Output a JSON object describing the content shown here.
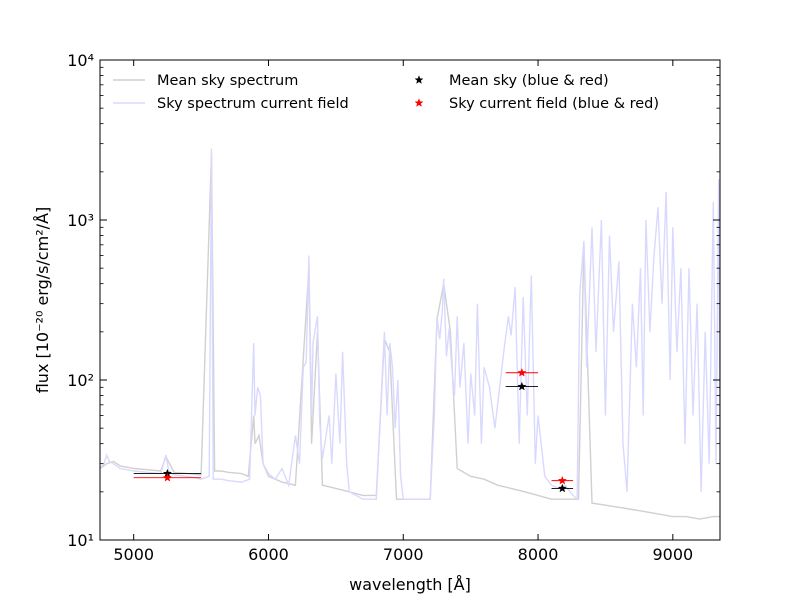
{
  "chart_data": {
    "type": "line",
    "xlabel": "wavelength [Å]",
    "ylabel": "flux [10⁻²⁰ erg/s/cm²/Å]",
    "xlim": [
      4750,
      9350
    ],
    "ylim": [
      10,
      10000
    ],
    "yscale": "log",
    "grid": false,
    "legend_position": "top",
    "x_ticks": [
      5000,
      6000,
      7000,
      8000,
      9000
    ],
    "y_ticks": [
      {
        "value": 10,
        "label": "10¹"
      },
      {
        "value": 100,
        "label": "10²"
      },
      {
        "value": 1000,
        "label": "10³"
      },
      {
        "value": 10000,
        "label": "10⁴"
      }
    ],
    "series": [
      {
        "name": "Mean sky spectrum",
        "kind": "line",
        "color": "#d0d0d0",
        "points": [
          [
            4750,
            28
          ],
          [
            4800,
            30
          ],
          [
            4850,
            31
          ],
          [
            4900,
            29
          ],
          [
            4950,
            28.5
          ],
          [
            5000,
            28
          ],
          [
            5100,
            27.5
          ],
          [
            5200,
            27
          ],
          [
            5240,
            33
          ],
          [
            5300,
            26.5
          ],
          [
            5400,
            26
          ],
          [
            5500,
            25.5
          ],
          [
            5577,
            2600
          ],
          [
            5600,
            27
          ],
          [
            5650,
            27
          ],
          [
            5700,
            26.5
          ],
          [
            5800,
            26
          ],
          [
            5850,
            25
          ],
          [
            5890,
            60
          ],
          [
            5900,
            40
          ],
          [
            5930,
            45
          ],
          [
            5960,
            30
          ],
          [
            6000,
            25
          ],
          [
            6100,
            23
          ],
          [
            6200,
            22
          ],
          [
            6300,
            500
          ],
          [
            6320,
            40
          ],
          [
            6364,
            200
          ],
          [
            6400,
            22
          ],
          [
            6500,
            21
          ],
          [
            6600,
            20
          ],
          [
            6700,
            19
          ],
          [
            6800,
            19
          ],
          [
            6860,
            180
          ],
          [
            6900,
            150
          ],
          [
            6950,
            18
          ],
          [
            7000,
            18
          ],
          [
            7100,
            18
          ],
          [
            7200,
            18
          ],
          [
            7250,
            240
          ],
          [
            7300,
            400
          ],
          [
            7350,
            200
          ],
          [
            7400,
            28
          ],
          [
            7500,
            25
          ],
          [
            7600,
            24
          ],
          [
            7700,
            22
          ],
          [
            7800,
            21
          ],
          [
            7900,
            20
          ],
          [
            8000,
            19
          ],
          [
            8100,
            18
          ],
          [
            8200,
            18
          ],
          [
            8300,
            18
          ],
          [
            8340,
            700
          ],
          [
            8400,
            17
          ],
          [
            8500,
            16.5
          ],
          [
            8600,
            16
          ],
          [
            8700,
            15.5
          ],
          [
            8800,
            15
          ],
          [
            8900,
            14.5
          ],
          [
            9000,
            14
          ],
          [
            9100,
            14
          ],
          [
            9200,
            13.5
          ],
          [
            9300,
            14
          ],
          [
            9350,
            14
          ]
        ]
      },
      {
        "name": "Sky spectrum current field",
        "kind": "line",
        "color": "#d9d9ff",
        "points": [
          [
            4750,
            28
          ],
          [
            4780,
            30
          ],
          [
            4800,
            34
          ],
          [
            4820,
            31
          ],
          [
            4850,
            30
          ],
          [
            4900,
            28
          ],
          [
            4950,
            27.5
          ],
          [
            5000,
            27
          ],
          [
            5100,
            26.5
          ],
          [
            5200,
            26
          ],
          [
            5240,
            34
          ],
          [
            5260,
            27
          ],
          [
            5300,
            25.5
          ],
          [
            5400,
            25
          ],
          [
            5500,
            24
          ],
          [
            5560,
            25
          ],
          [
            5577,
            2800
          ],
          [
            5590,
            24
          ],
          [
            5650,
            24
          ],
          [
            5700,
            23.5
          ],
          [
            5800,
            23
          ],
          [
            5860,
            24
          ],
          [
            5890,
            170
          ],
          [
            5900,
            60
          ],
          [
            5920,
            90
          ],
          [
            5940,
            80
          ],
          [
            5960,
            30
          ],
          [
            6000,
            26
          ],
          [
            6050,
            24
          ],
          [
            6100,
            28
          ],
          [
            6150,
            22
          ],
          [
            6200,
            45
          ],
          [
            6230,
            30
          ],
          [
            6258,
            120
          ],
          [
            6280,
            130
          ],
          [
            6300,
            600
          ],
          [
            6320,
            60
          ],
          [
            6330,
            170
          ],
          [
            6364,
            250
          ],
          [
            6380,
            55
          ],
          [
            6400,
            32
          ],
          [
            6450,
            60
          ],
          [
            6470,
            30
          ],
          [
            6500,
            110
          ],
          [
            6530,
            40
          ],
          [
            6550,
            150
          ],
          [
            6580,
            30
          ],
          [
            6600,
            20
          ],
          [
            6650,
            19
          ],
          [
            6700,
            18
          ],
          [
            6750,
            18
          ],
          [
            6800,
            18
          ],
          [
            6830,
            60
          ],
          [
            6860,
            200
          ],
          [
            6880,
            60
          ],
          [
            6900,
            170
          ],
          [
            6920,
            120
          ],
          [
            6940,
            50
          ],
          [
            6960,
            100
          ],
          [
            6980,
            25
          ],
          [
            7000,
            18
          ],
          [
            7050,
            18
          ],
          [
            7100,
            18
          ],
          [
            7150,
            18
          ],
          [
            7200,
            18
          ],
          [
            7230,
            60
          ],
          [
            7250,
            250
          ],
          [
            7270,
            180
          ],
          [
            7290,
            270
          ],
          [
            7300,
            430
          ],
          [
            7320,
            140
          ],
          [
            7340,
            210
          ],
          [
            7360,
            120
          ],
          [
            7380,
            80
          ],
          [
            7400,
            250
          ],
          [
            7420,
            90
          ],
          [
            7450,
            170
          ],
          [
            7480,
            40
          ],
          [
            7500,
            110
          ],
          [
            7530,
            60
          ],
          [
            7550,
            300
          ],
          [
            7580,
            40
          ],
          [
            7600,
            120
          ],
          [
            7640,
            90
          ],
          [
            7680,
            50
          ],
          [
            7700,
            70
          ],
          [
            7750,
            160
          ],
          [
            7780,
            250
          ],
          [
            7800,
            190
          ],
          [
            7830,
            380
          ],
          [
            7860,
            40
          ],
          [
            7890,
            330
          ],
          [
            7920,
            60
          ],
          [
            7950,
            450
          ],
          [
            7980,
            30
          ],
          [
            8000,
            60
          ],
          [
            8050,
            25
          ],
          [
            8100,
            22
          ],
          [
            8150,
            21
          ],
          [
            8200,
            22
          ],
          [
            8260,
            19
          ],
          [
            8290,
            18
          ],
          [
            8310,
            350
          ],
          [
            8340,
            740
          ],
          [
            8360,
            120
          ],
          [
            8400,
            900
          ],
          [
            8430,
            150
          ],
          [
            8470,
            1000
          ],
          [
            8500,
            60
          ],
          [
            8530,
            800
          ],
          [
            8560,
            200
          ],
          [
            8600,
            550
          ],
          [
            8630,
            40
          ],
          [
            8660,
            20
          ],
          [
            8700,
            300
          ],
          [
            8730,
            120
          ],
          [
            8760,
            500
          ],
          [
            8780,
            60
          ],
          [
            8800,
            1000
          ],
          [
            8830,
            200
          ],
          [
            8860,
            600
          ],
          [
            8890,
            1200
          ],
          [
            8920,
            300
          ],
          [
            8950,
            1500
          ],
          [
            8980,
            100
          ],
          [
            9000,
            900
          ],
          [
            9030,
            150
          ],
          [
            9060,
            500
          ],
          [
            9090,
            40
          ],
          [
            9120,
            500
          ],
          [
            9150,
            60
          ],
          [
            9180,
            300
          ],
          [
            9210,
            20
          ],
          [
            9240,
            200
          ],
          [
            9270,
            30
          ],
          [
            9300,
            1300
          ],
          [
            9320,
            30
          ],
          [
            9340,
            1800
          ],
          [
            9350,
            40
          ]
        ]
      },
      {
        "name": "Mean sky (blue & red)",
        "kind": "scatter",
        "marker": "star",
        "color": "#000000",
        "points": [
          {
            "x": 5250,
            "y": 26,
            "xerr": [
              5000,
              5500
            ]
          },
          {
            "x": 7880,
            "y": 91,
            "xerr": [
              7760,
              8000
            ]
          },
          {
            "x": 8180,
            "y": 21,
            "xerr": [
              8100,
              8260
            ]
          }
        ]
      },
      {
        "name": "Sky current field (blue & red)",
        "kind": "scatter",
        "marker": "star",
        "color": "#ff0000",
        "points": [
          {
            "x": 5250,
            "y": 24.5,
            "xerr": [
              5000,
              5500
            ]
          },
          {
            "x": 7880,
            "y": 111,
            "xerr": [
              7760,
              8000
            ]
          },
          {
            "x": 8180,
            "y": 23.5,
            "xerr": [
              8100,
              8260
            ]
          }
        ]
      }
    ]
  }
}
